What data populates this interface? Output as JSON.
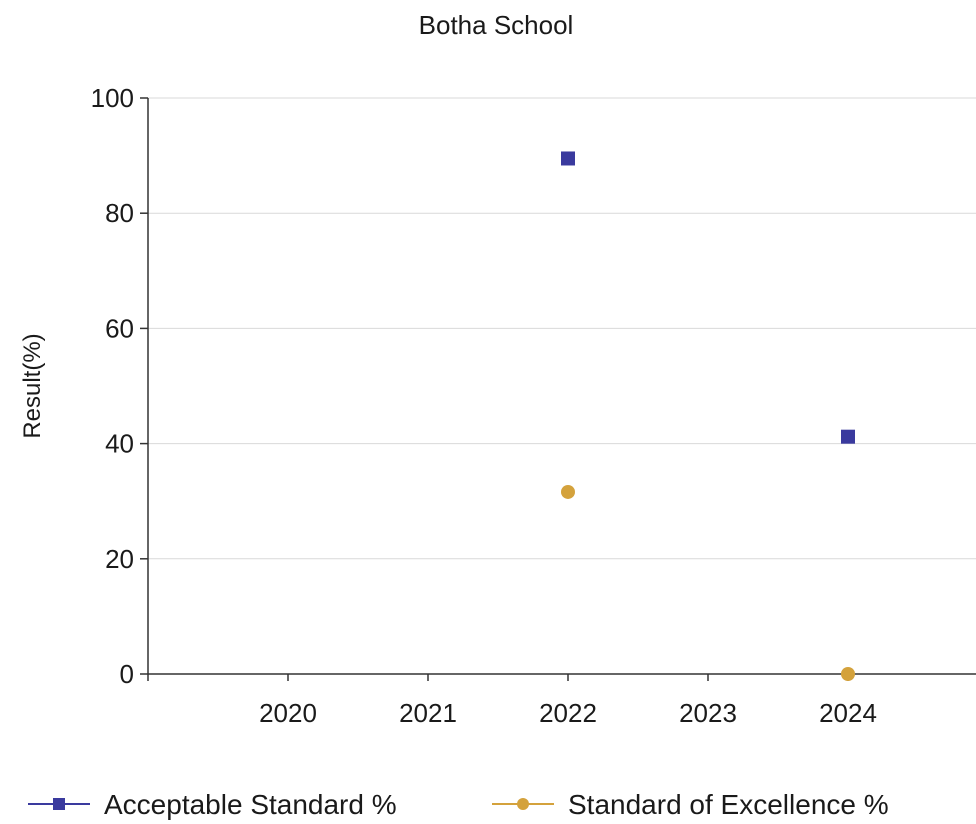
{
  "chart_data": {
    "type": "scatter",
    "title": "Botha School",
    "xlabel": "",
    "ylabel": "Result(%)",
    "categories": [
      "2020",
      "2021",
      "2022",
      "2023",
      "2024"
    ],
    "ylim": [
      0,
      100
    ],
    "yticks": [
      0,
      20,
      40,
      60,
      80,
      100
    ],
    "grid": true,
    "legend_position": "bottom",
    "series": [
      {
        "name": "Acceptable Standard %",
        "marker": "square",
        "color": "#3a3a9e",
        "values": [
          null,
          null,
          89.5,
          null,
          41.2
        ]
      },
      {
        "name": "Standard of Excellence %",
        "marker": "circle",
        "color": "#d4a23c",
        "values": [
          null,
          null,
          31.6,
          null,
          0
        ]
      }
    ]
  }
}
